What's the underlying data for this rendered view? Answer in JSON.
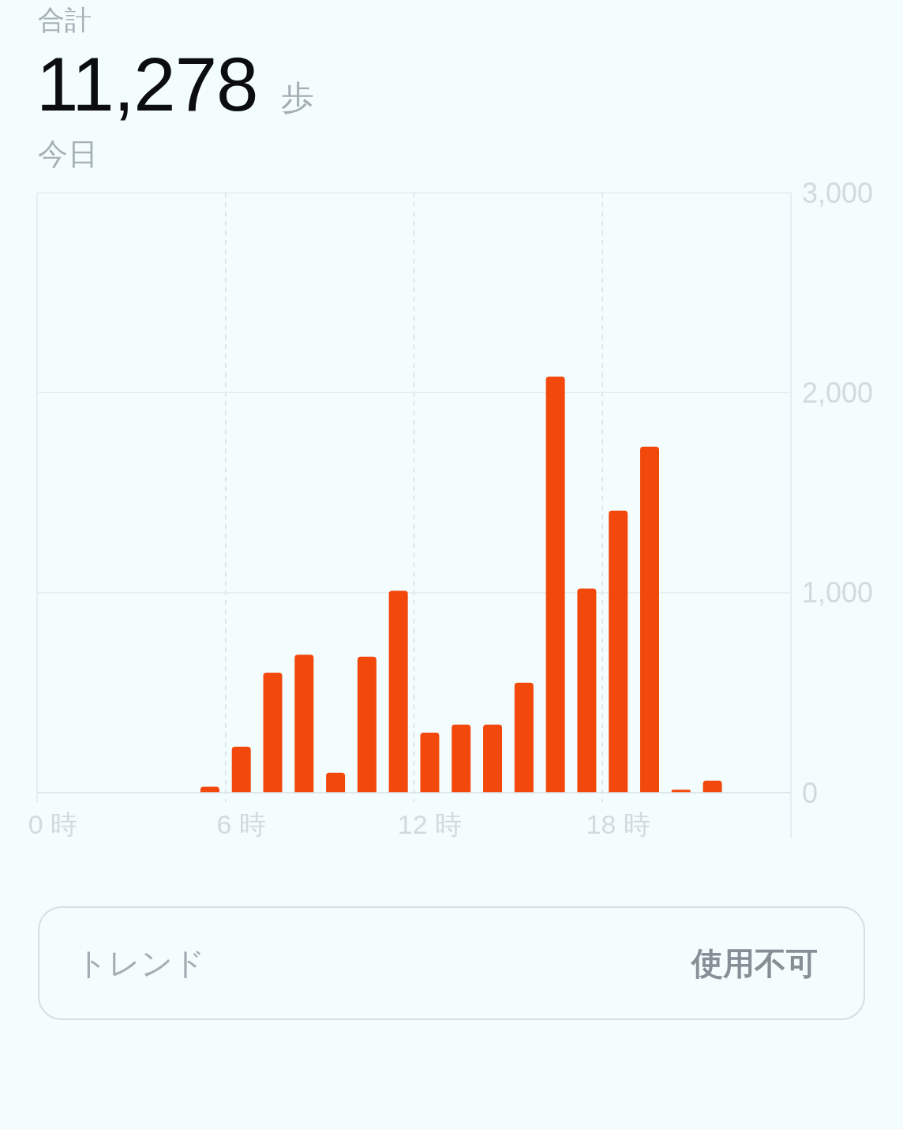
{
  "chart_data": {
    "type": "bar",
    "title": "合計",
    "subtitle": "今日",
    "annotations": [
      "11,278",
      "歩",
      "トレンド",
      "使用不可"
    ],
    "categories": [
      "0 時",
      null,
      null,
      null,
      null,
      null,
      "6 時",
      null,
      null,
      null,
      null,
      null,
      "12 時",
      null,
      null,
      null,
      null,
      null,
      "18 時",
      null,
      null,
      null,
      null,
      null
    ],
    "values": [
      null,
      null,
      null,
      null,
      null,
      30,
      230,
      600,
      690,
      100,
      680,
      1010,
      300,
      340,
      340,
      550,
      2080,
      1020,
      1410,
      1730,
      15,
      60,
      null,
      null
    ],
    "color": "#f2480c",
    "ylim": [
      0,
      3000
    ],
    "yticks": [
      0,
      {
        "value": 1000,
        "label": "1,000"
      },
      {
        "value": 2000,
        "label": "2,000"
      },
      {
        "value": 3000,
        "label": "3,000"
      }
    ],
    "grid": true
  }
}
